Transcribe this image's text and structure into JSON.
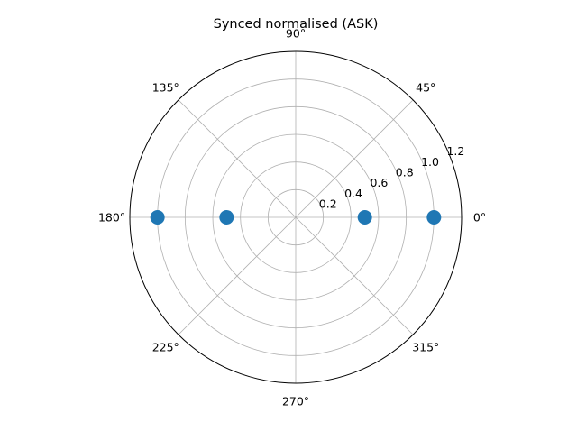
{
  "chart_data": {
    "type": "scatter",
    "projection": "polar",
    "title": "Synced normalised (ASK)",
    "theta_unit": "degrees",
    "r_lim": [
      0,
      1.2
    ],
    "r_ticks": [
      0.2,
      0.4,
      0.6,
      0.8,
      1.0,
      1.2
    ],
    "r_tick_labels": [
      "0.2",
      "0.4",
      "0.6",
      "0.8",
      "1.0",
      "1.2"
    ],
    "theta_ticks": [
      0,
      45,
      90,
      135,
      180,
      225,
      270,
      315
    ],
    "theta_tick_labels": [
      "0°",
      "45°",
      "90°",
      "135°",
      "180°",
      "225°",
      "270°",
      "315°"
    ],
    "grid": true,
    "series": [
      {
        "color": "#1f77b4",
        "marker": "circle",
        "points": [
          {
            "theta": 0,
            "r": 1.0
          },
          {
            "theta": 0,
            "r": 0.5
          },
          {
            "theta": 180,
            "r": 0.5
          },
          {
            "theta": 180,
            "r": 1.0
          }
        ]
      }
    ]
  }
}
